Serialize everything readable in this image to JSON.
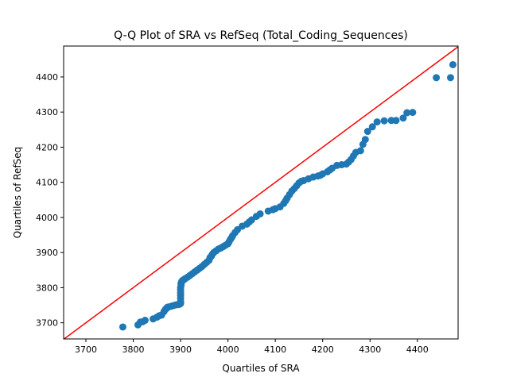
{
  "chart_data": {
    "type": "scatter",
    "title": "Q-Q Plot of SRA vs RefSeq (Total_Coding_Sequences)",
    "xlabel": "Quartiles of SRA",
    "ylabel": "Quartiles of RefSeq",
    "xlim": [
      3653,
      4486
    ],
    "ylim": [
      3654,
      4488
    ],
    "xticks": [
      "3700",
      "3800",
      "3900",
      "4000",
      "4100",
      "4200",
      "4300",
      "4400"
    ],
    "yticks": [
      "3700",
      "3800",
      "3900",
      "4000",
      "4100",
      "4200",
      "4300",
      "4400"
    ],
    "grid": false,
    "legend": "none",
    "reference_line": {
      "x": [
        3653,
        4486
      ],
      "y": [
        3653,
        4486
      ],
      "color": "#ff0000"
    },
    "marker_color": "#1f77b4",
    "x": [
      3778,
      3810,
      3815,
      3820,
      3825,
      3842,
      3850,
      3855,
      3860,
      3865,
      3868,
      3870,
      3872,
      3875,
      3880,
      3885,
      3890,
      3895,
      3898,
      3900,
      3900,
      3900,
      3900,
      3900,
      3900,
      3900,
      3901,
      3901,
      3902,
      3903,
      3904,
      3905,
      3907,
      3910,
      3915,
      3920,
      3925,
      3930,
      3935,
      3940,
      3945,
      3950,
      3955,
      3960,
      3962,
      3965,
      3967,
      3970,
      3975,
      3980,
      3985,
      3990,
      3995,
      4000,
      4002,
      4005,
      4008,
      4010,
      4015,
      4020,
      4030,
      4040,
      4045,
      4050,
      4060,
      4068,
      4085,
      4095,
      4100,
      4110,
      4118,
      4122,
      4125,
      4130,
      4135,
      4140,
      4145,
      4150,
      4155,
      4160,
      4170,
      4180,
      4190,
      4195,
      4200,
      4210,
      4215,
      4220,
      4230,
      4240,
      4250,
      4255,
      4260,
      4265,
      4270,
      4280,
      4285,
      4290,
      4295,
      4305,
      4315,
      4330,
      4345,
      4355,
      4370,
      4378,
      4390,
      4440,
      4470,
      4475
    ],
    "y": [
      3688,
      3694,
      3702,
      3703,
      3707,
      3711,
      3716,
      3720,
      3722,
      3732,
      3738,
      3741,
      3744,
      3745,
      3747,
      3749,
      3751,
      3752,
      3753,
      3755,
      3760,
      3770,
      3778,
      3785,
      3793,
      3800,
      3807,
      3812,
      3816,
      3818,
      3820,
      3821,
      3823,
      3826,
      3830,
      3835,
      3840,
      3845,
      3850,
      3855,
      3860,
      3866,
      3872,
      3878,
      3885,
      3890,
      3895,
      3900,
      3905,
      3910,
      3913,
      3917,
      3921,
      3925,
      3930,
      3937,
      3943,
      3948,
      3957,
      3965,
      3975,
      3981,
      3987,
      3993,
      4003,
      4010,
      4018,
      4022,
      4025,
      4030,
      4040,
      4048,
      4055,
      4065,
      4075,
      4082,
      4090,
      4098,
      4103,
      4105,
      4110,
      4115,
      4118,
      4120,
      4124,
      4130,
      4135,
      4140,
      4148,
      4150,
      4152,
      4158,
      4165,
      4175,
      4185,
      4190,
      4208,
      4222,
      4245,
      4258,
      4272,
      4275,
      4276,
      4276,
      4283,
      4298,
      4299,
      4398,
      4398,
      4435
    ]
  }
}
